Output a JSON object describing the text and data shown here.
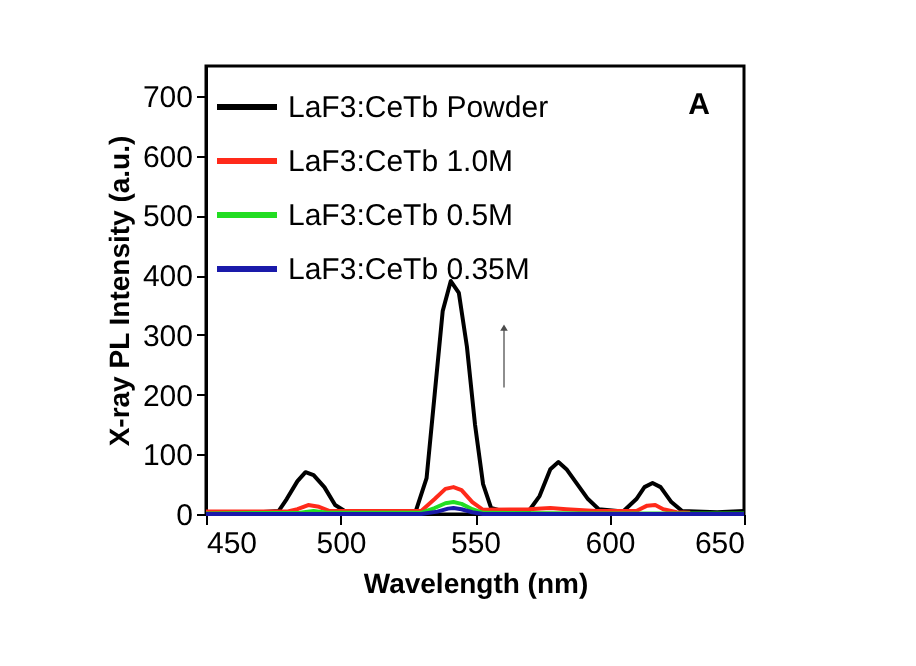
{
  "chart_data": {
    "type": "line",
    "xlabel": "Wavelength (nm)",
    "ylabel": "X-ray PL Intensity (a.u.)",
    "xlim": [
      450,
      650
    ],
    "xticks": [
      450,
      500,
      550,
      600,
      650
    ],
    "ylim": [
      0,
      750
    ],
    "yticks": [
      0,
      100,
      200,
      300,
      400,
      500,
      600,
      700
    ],
    "grid": false,
    "legend": "top left",
    "annotations": [
      "A"
    ],
    "series": [
      {
        "name": "LaF3:CeTb Powder",
        "color": "#000000",
        "x": [
          450,
          470,
          477,
          480,
          484,
          487,
          490,
          494,
          498,
          502,
          520,
          528,
          532,
          535,
          538,
          541,
          544,
          547,
          550,
          553,
          556,
          560,
          570,
          574,
          578,
          581,
          584,
          588,
          592,
          596,
          605,
          610,
          613,
          616,
          619,
          623,
          627,
          640,
          650
        ],
        "values": [
          3,
          3,
          5,
          25,
          55,
          70,
          65,
          45,
          15,
          4,
          4,
          5,
          60,
          200,
          340,
          390,
          370,
          280,
          150,
          50,
          10,
          5,
          5,
          30,
          75,
          87,
          75,
          50,
          25,
          8,
          4,
          25,
          45,
          52,
          45,
          20,
          5,
          3,
          5
        ]
      },
      {
        "name": "LaF3:CeTb 1.0M",
        "color": "#ff2a1a",
        "x": [
          450,
          480,
          484,
          488,
          492,
          496,
          530,
          535,
          539,
          542,
          545,
          549,
          553,
          570,
          578,
          584,
          595,
          610,
          614,
          617,
          620,
          625,
          630
        ],
        "values": [
          4,
          4,
          8,
          15,
          12,
          5,
          5,
          25,
          42,
          45,
          40,
          20,
          7,
          8,
          10,
          8,
          5,
          5,
          14,
          15,
          8,
          3,
          2
        ]
      },
      {
        "name": "LaF3:CeTb 0.5M",
        "color": "#22dd22",
        "x": [
          450,
          485,
          490,
          495,
          530,
          535,
          539,
          542,
          545,
          549,
          553,
          600,
          650
        ],
        "values": [
          1,
          2,
          5,
          2,
          2,
          10,
          18,
          20,
          17,
          8,
          2,
          1,
          1
        ]
      },
      {
        "name": "LaF3:CeTb 0.35M",
        "color": "#1a1aaa",
        "x": [
          450,
          530,
          536,
          540,
          542,
          545,
          549,
          553,
          650
        ],
        "values": [
          0,
          0,
          4,
          9,
          10,
          8,
          3,
          0,
          0
        ]
      }
    ]
  }
}
